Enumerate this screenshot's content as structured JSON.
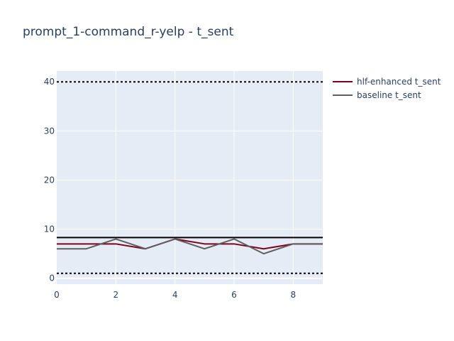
{
  "chart_data": {
    "type": "line",
    "title": "prompt_1-command_r-yelp - t_sent",
    "xlabel": "",
    "ylabel": "",
    "xlim": [
      0,
      9
    ],
    "ylim": [
      -1.2,
      42.2
    ],
    "x_ticks": [
      0,
      2,
      4,
      6,
      8
    ],
    "y_ticks": [
      0,
      10,
      20,
      30,
      40
    ],
    "grid": true,
    "legend_position": "top-right",
    "x": [
      0,
      1,
      2,
      3,
      4,
      5,
      6,
      7,
      8,
      9
    ],
    "series": [
      {
        "name": "hlf-enhanced t_sent",
        "color": "#800020",
        "values": [
          7,
          7,
          7,
          6,
          8,
          7,
          7,
          6,
          7,
          7
        ]
      },
      {
        "name": "baseline t_sent",
        "color": "#5f5f5f",
        "values": [
          6,
          6,
          8,
          6,
          8,
          6,
          8,
          5,
          7,
          7
        ]
      }
    ],
    "reference_lines": [
      {
        "y": 8.3,
        "style": "solid",
        "color": "#000000"
      },
      {
        "y": 40,
        "style": "dotted",
        "color": "#000000"
      },
      {
        "y": 1,
        "style": "dotted",
        "color": "#000000"
      }
    ],
    "plot_background": "#e5ecf6"
  }
}
